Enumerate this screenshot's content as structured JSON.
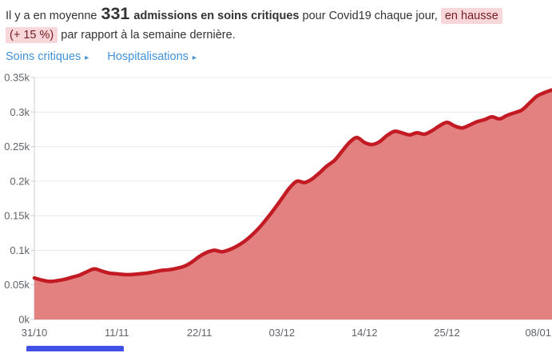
{
  "header": {
    "text_prefix": "Il y a en moyenne",
    "stat_value": "331",
    "stat_label": "admissions en soins critiques",
    "text_middle": "pour Covid19 chaque jour,",
    "trend_highlight": "en hausse",
    "trend_detail": "(+ 15 %)",
    "text_suffix": "par rapport à la semaine dernière."
  },
  "nav": {
    "arrow": "▸",
    "links": [
      {
        "label": "Soins critiques"
      },
      {
        "label": "Hospitalisations"
      }
    ]
  },
  "chart_data": {
    "type": "area",
    "title": "",
    "xlabel": "",
    "ylabel": "",
    "ylim": [
      0,
      350
    ],
    "grid": true,
    "legend_position": "none",
    "ytick_values": [
      0,
      50,
      100,
      150,
      200,
      250,
      300,
      350
    ],
    "ytick_labels": [
      "0k",
      "0.05k",
      "0.1k",
      "0.15k",
      "0.2k",
      "0.25k",
      "0.3k",
      "0.35k"
    ],
    "xticks": [
      {
        "index": 0,
        "label": "31/10"
      },
      {
        "index": 11,
        "label": "11/11"
      },
      {
        "index": 22,
        "label": "22/11"
      },
      {
        "index": 33,
        "label": "03/12"
      },
      {
        "index": 44,
        "label": "14/12"
      },
      {
        "index": 55,
        "label": "25/12"
      },
      {
        "index": 69,
        "label": "08/01"
      }
    ],
    "x": [
      "31/10",
      "01/11",
      "02/11",
      "03/11",
      "04/11",
      "05/11",
      "06/11",
      "07/11",
      "08/11",
      "09/11",
      "10/11",
      "11/11",
      "12/11",
      "13/11",
      "14/11",
      "15/11",
      "16/11",
      "17/11",
      "18/11",
      "19/11",
      "20/11",
      "21/11",
      "22/11",
      "23/11",
      "24/11",
      "25/11",
      "26/11",
      "27/11",
      "28/11",
      "29/11",
      "30/11",
      "01/12",
      "02/12",
      "03/12",
      "04/12",
      "05/12",
      "06/12",
      "07/12",
      "08/12",
      "09/12",
      "10/12",
      "11/12",
      "12/12",
      "13/12",
      "14/12",
      "15/12",
      "16/12",
      "17/12",
      "18/12",
      "19/12",
      "20/12",
      "21/12",
      "22/12",
      "23/12",
      "24/12",
      "25/12",
      "26/12",
      "27/12",
      "28/12",
      "29/12",
      "30/12",
      "31/12",
      "01/01",
      "02/01",
      "03/01",
      "04/01",
      "05/01",
      "06/01",
      "07/01",
      "08/01"
    ],
    "values": [
      60,
      57,
      55,
      56,
      58,
      61,
      64,
      69,
      73,
      70,
      67,
      66,
      65,
      65,
      66,
      67,
      69,
      71,
      72,
      74,
      77,
      83,
      91,
      97,
      100,
      98,
      101,
      106,
      113,
      122,
      133,
      146,
      160,
      175,
      190,
      200,
      198,
      203,
      212,
      222,
      230,
      243,
      256,
      263,
      256,
      253,
      257,
      266,
      272,
      270,
      267,
      270,
      268,
      273,
      280,
      285,
      280,
      277,
      281,
      286,
      289,
      293,
      290,
      295,
      299,
      303,
      313,
      323,
      328,
      332
    ]
  },
  "colors": {
    "line": "#c21b24",
    "fill": "#e28180",
    "highlight_bg": "#f8d7da",
    "highlight_text": "#721c24",
    "link": "#4191d9",
    "grid": "#e9e9e9",
    "axis": "#cccccc",
    "tick_label": "#5f6368",
    "text": "#333333",
    "partial_element": "#4252e8"
  }
}
